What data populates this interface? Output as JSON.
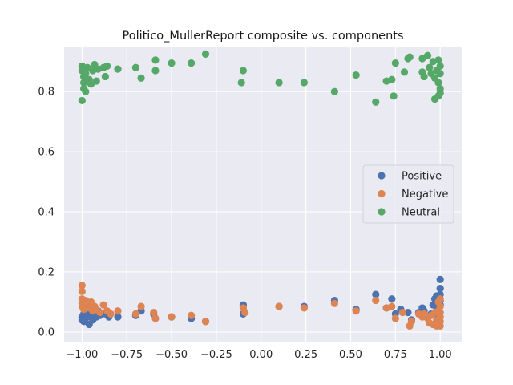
{
  "chart_data": {
    "type": "scatter",
    "title": "Politico_MullerReport composite vs. components",
    "xlabel": "",
    "ylabel": "",
    "xlim": [
      -1.1,
      1.12
    ],
    "ylim": [
      -0.035,
      0.95
    ],
    "xticks": [
      -1.0,
      -0.75,
      -0.5,
      -0.25,
      0.0,
      0.25,
      0.5,
      0.75,
      1.0
    ],
    "xtick_labels": [
      "−1.00",
      "−0.75",
      "−0.50",
      "−0.25",
      "0.00",
      "0.25",
      "0.50",
      "0.75",
      "1.00"
    ],
    "yticks": [
      0.0,
      0.2,
      0.4,
      0.6,
      0.8
    ],
    "ytick_labels": [
      "0.0",
      "0.2",
      "0.4",
      "0.6",
      "0.8"
    ],
    "grid": true,
    "background": "#eaeaf2",
    "legend": "right",
    "series": [
      {
        "name": "Positive",
        "color": "#4c72b0",
        "points": [
          [
            -1.0,
            0.04
          ],
          [
            -1.0,
            0.05
          ],
          [
            -0.99,
            0.035
          ],
          [
            -0.99,
            0.06
          ],
          [
            -0.98,
            0.045
          ],
          [
            -0.98,
            0.07
          ],
          [
            -0.97,
            0.055
          ],
          [
            -0.96,
            0.025
          ],
          [
            -0.96,
            0.065
          ],
          [
            -0.95,
            0.05
          ],
          [
            -0.94,
            0.04
          ],
          [
            -0.93,
            0.06
          ],
          [
            -0.92,
            0.05
          ],
          [
            -0.91,
            0.07
          ],
          [
            -0.9,
            0.055
          ],
          [
            -0.87,
            0.06
          ],
          [
            -0.85,
            0.05
          ],
          [
            -0.8,
            0.05
          ],
          [
            -0.7,
            0.055
          ],
          [
            -0.67,
            0.07
          ],
          [
            -0.6,
            0.06
          ],
          [
            -0.5,
            0.05
          ],
          [
            -0.39,
            0.045
          ],
          [
            -0.31,
            0.035
          ],
          [
            -0.1,
            0.09
          ],
          [
            -0.1,
            0.06
          ],
          [
            0.1,
            0.085
          ],
          [
            0.24,
            0.085
          ],
          [
            0.41,
            0.105
          ],
          [
            0.53,
            0.075
          ],
          [
            0.64,
            0.125
          ],
          [
            0.7,
            0.08
          ],
          [
            0.73,
            0.11
          ],
          [
            0.75,
            0.06
          ],
          [
            0.78,
            0.075
          ],
          [
            0.82,
            0.065
          ],
          [
            0.84,
            0.04
          ],
          [
            0.88,
            0.065
          ],
          [
            0.9,
            0.08
          ],
          [
            0.91,
            0.07
          ],
          [
            0.93,
            0.05
          ],
          [
            0.95,
            0.06
          ],
          [
            0.96,
            0.09
          ],
          [
            0.97,
            0.11
          ],
          [
            0.98,
            0.12
          ],
          [
            0.98,
            0.07
          ],
          [
            0.99,
            0.1
          ],
          [
            0.99,
            0.08
          ],
          [
            1.0,
            0.175
          ],
          [
            1.0,
            0.145
          ],
          [
            1.0,
            0.125
          ],
          [
            1.0,
            0.105
          ],
          [
            1.0,
            0.09
          ],
          [
            0.99,
            0.05
          ]
        ]
      },
      {
        "name": "Negative",
        "color": "#dd8452",
        "points": [
          [
            -1.0,
            0.155
          ],
          [
            -1.0,
            0.135
          ],
          [
            -1.0,
            0.11
          ],
          [
            -1.0,
            0.095
          ],
          [
            -1.0,
            0.085
          ],
          [
            -0.99,
            0.075
          ],
          [
            -0.98,
            0.105
          ],
          [
            -0.97,
            0.09
          ],
          [
            -0.96,
            0.08
          ],
          [
            -0.95,
            0.1
          ],
          [
            -0.94,
            0.07
          ],
          [
            -0.93,
            0.085
          ],
          [
            -0.92,
            0.075
          ],
          [
            -0.9,
            0.065
          ],
          [
            -0.88,
            0.09
          ],
          [
            -0.86,
            0.07
          ],
          [
            -0.84,
            0.06
          ],
          [
            -0.8,
            0.07
          ],
          [
            -0.7,
            0.06
          ],
          [
            -0.67,
            0.085
          ],
          [
            -0.6,
            0.065
          ],
          [
            -0.59,
            0.045
          ],
          [
            -0.5,
            0.05
          ],
          [
            -0.39,
            0.055
          ],
          [
            -0.31,
            0.035
          ],
          [
            -0.1,
            0.08
          ],
          [
            -0.09,
            0.065
          ],
          [
            0.1,
            0.085
          ],
          [
            0.24,
            0.08
          ],
          [
            0.41,
            0.095
          ],
          [
            0.53,
            0.07
          ],
          [
            0.64,
            0.105
          ],
          [
            0.7,
            0.08
          ],
          [
            0.73,
            0.085
          ],
          [
            0.75,
            0.045
          ],
          [
            0.79,
            0.065
          ],
          [
            0.83,
            0.02
          ],
          [
            0.84,
            0.035
          ],
          [
            0.88,
            0.06
          ],
          [
            0.9,
            0.05
          ],
          [
            0.91,
            0.06
          ],
          [
            0.93,
            0.045
          ],
          [
            0.94,
            0.03
          ],
          [
            0.95,
            0.055
          ],
          [
            0.96,
            0.025
          ],
          [
            0.97,
            0.065
          ],
          [
            0.98,
            0.04
          ],
          [
            0.99,
            0.07
          ],
          [
            1.0,
            0.085
          ],
          [
            1.0,
            0.065
          ],
          [
            1.0,
            0.05
          ],
          [
            1.0,
            0.035
          ],
          [
            1.0,
            0.02
          ],
          [
            0.98,
            0.02
          ],
          [
            0.99,
            0.1
          ],
          [
            1.0,
            0.11
          ]
        ]
      },
      {
        "name": "Neutral",
        "color": "#55a868",
        "points": [
          [
            -1.0,
            0.885
          ],
          [
            -1.0,
            0.87
          ],
          [
            -0.99,
            0.85
          ],
          [
            -0.99,
            0.83
          ],
          [
            -0.99,
            0.81
          ],
          [
            -1.0,
            0.77
          ],
          [
            -0.98,
            0.8
          ],
          [
            -0.98,
            0.86
          ],
          [
            -0.97,
            0.88
          ],
          [
            -0.96,
            0.84
          ],
          [
            -0.95,
            0.825
          ],
          [
            -0.94,
            0.87
          ],
          [
            -0.93,
            0.89
          ],
          [
            -0.92,
            0.835
          ],
          [
            -0.91,
            0.875
          ],
          [
            -0.88,
            0.88
          ],
          [
            -0.87,
            0.85
          ],
          [
            -0.86,
            0.885
          ],
          [
            -0.8,
            0.875
          ],
          [
            -0.7,
            0.88
          ],
          [
            -0.67,
            0.845
          ],
          [
            -0.59,
            0.905
          ],
          [
            -0.59,
            0.87
          ],
          [
            -0.5,
            0.895
          ],
          [
            -0.39,
            0.895
          ],
          [
            -0.31,
            0.925
          ],
          [
            -0.1,
            0.87
          ],
          [
            -0.11,
            0.83
          ],
          [
            0.1,
            0.83
          ],
          [
            0.24,
            0.83
          ],
          [
            0.41,
            0.8
          ],
          [
            0.53,
            0.855
          ],
          [
            0.64,
            0.765
          ],
          [
            0.7,
            0.835
          ],
          [
            0.73,
            0.84
          ],
          [
            0.74,
            0.785
          ],
          [
            0.75,
            0.895
          ],
          [
            0.8,
            0.865
          ],
          [
            0.82,
            0.91
          ],
          [
            0.83,
            0.915
          ],
          [
            0.9,
            0.91
          ],
          [
            0.9,
            0.865
          ],
          [
            0.91,
            0.85
          ],
          [
            0.93,
            0.92
          ],
          [
            0.94,
            0.88
          ],
          [
            0.95,
            0.86
          ],
          [
            0.96,
            0.9
          ],
          [
            0.97,
            0.845
          ],
          [
            0.97,
            0.775
          ],
          [
            0.98,
            0.87
          ],
          [
            0.99,
            0.905
          ],
          [
            0.99,
            0.83
          ],
          [
            1.0,
            0.885
          ],
          [
            1.0,
            0.81
          ],
          [
            1.0,
            0.795
          ],
          [
            0.99,
            0.785
          ],
          [
            1.0,
            0.86
          ]
        ]
      }
    ]
  }
}
